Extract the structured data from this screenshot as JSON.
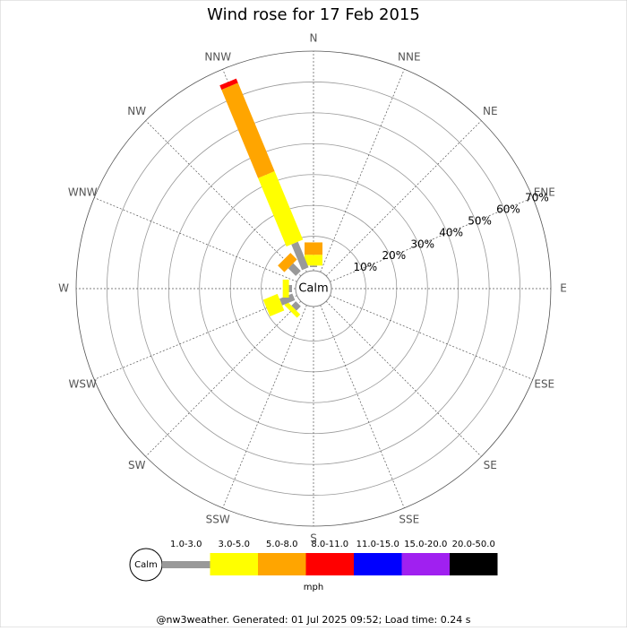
{
  "chart_data": {
    "type": "windrose",
    "title": "Wind rose for 17 Feb 2015",
    "categories": [
      "N",
      "NNE",
      "NE",
      "ENE",
      "E",
      "ESE",
      "SE",
      "SSE",
      "S",
      "SSW",
      "SW",
      "WSW",
      "W",
      "WNW",
      "NW",
      "NNW"
    ],
    "center_label": "Calm",
    "rlim": [
      0,
      70
    ],
    "rticks": [
      {
        "value": 10,
        "label": "10%"
      },
      {
        "value": 20,
        "label": "20%"
      },
      {
        "value": 30,
        "label": "30%"
      },
      {
        "value": 40,
        "label": "40%"
      },
      {
        "value": 50,
        "label": "50%"
      },
      {
        "value": 60,
        "label": "60%"
      },
      {
        "value": 70,
        "label": "70%"
      }
    ],
    "series": [
      {
        "name": "1.0-3.0",
        "color": "#999999",
        "values": [
          0.5,
          0,
          0,
          0,
          0,
          0,
          0,
          0,
          0,
          0,
          2,
          4.5,
          1,
          0,
          3.5,
          9
        ]
      },
      {
        "name": "3.0-5.0",
        "color": "#ffff00",
        "values": [
          3.5,
          0,
          0,
          0,
          0,
          0,
          0,
          0,
          0,
          0,
          1.5,
          5,
          2,
          0,
          0,
          24
        ]
      },
      {
        "name": "5.0-8.0",
        "color": "#ffa500",
        "values": [
          4,
          0,
          0,
          0,
          0,
          0,
          0,
          0,
          0,
          0,
          0,
          0,
          0,
          0,
          3,
          31
        ]
      },
      {
        "name": "8.0-11.0",
        "color": "#ff0000",
        "values": [
          0,
          0,
          0,
          0,
          0,
          0,
          0,
          0,
          0,
          0,
          0,
          0,
          0,
          0,
          0,
          1.5
        ]
      },
      {
        "name": "11.0-15.0",
        "color": "#0000ff",
        "values": [
          0,
          0,
          0,
          0,
          0,
          0,
          0,
          0,
          0,
          0,
          0,
          0,
          0,
          0,
          0,
          0
        ]
      },
      {
        "name": "15.0-20.0",
        "color": "#a020f0",
        "values": [
          0,
          0,
          0,
          0,
          0,
          0,
          0,
          0,
          0,
          0,
          0,
          0,
          0,
          0,
          0,
          0
        ]
      },
      {
        "name": "20.0-50.0",
        "color": "#000000",
        "values": [
          0,
          0,
          0,
          0,
          0,
          0,
          0,
          0,
          0,
          0,
          0,
          0,
          0,
          0,
          0,
          0
        ]
      }
    ],
    "legend_unit": "mph",
    "footer": "@nw3weather. Generated: 01 Jul 2025 09:52; Load time: 0.24 s"
  }
}
